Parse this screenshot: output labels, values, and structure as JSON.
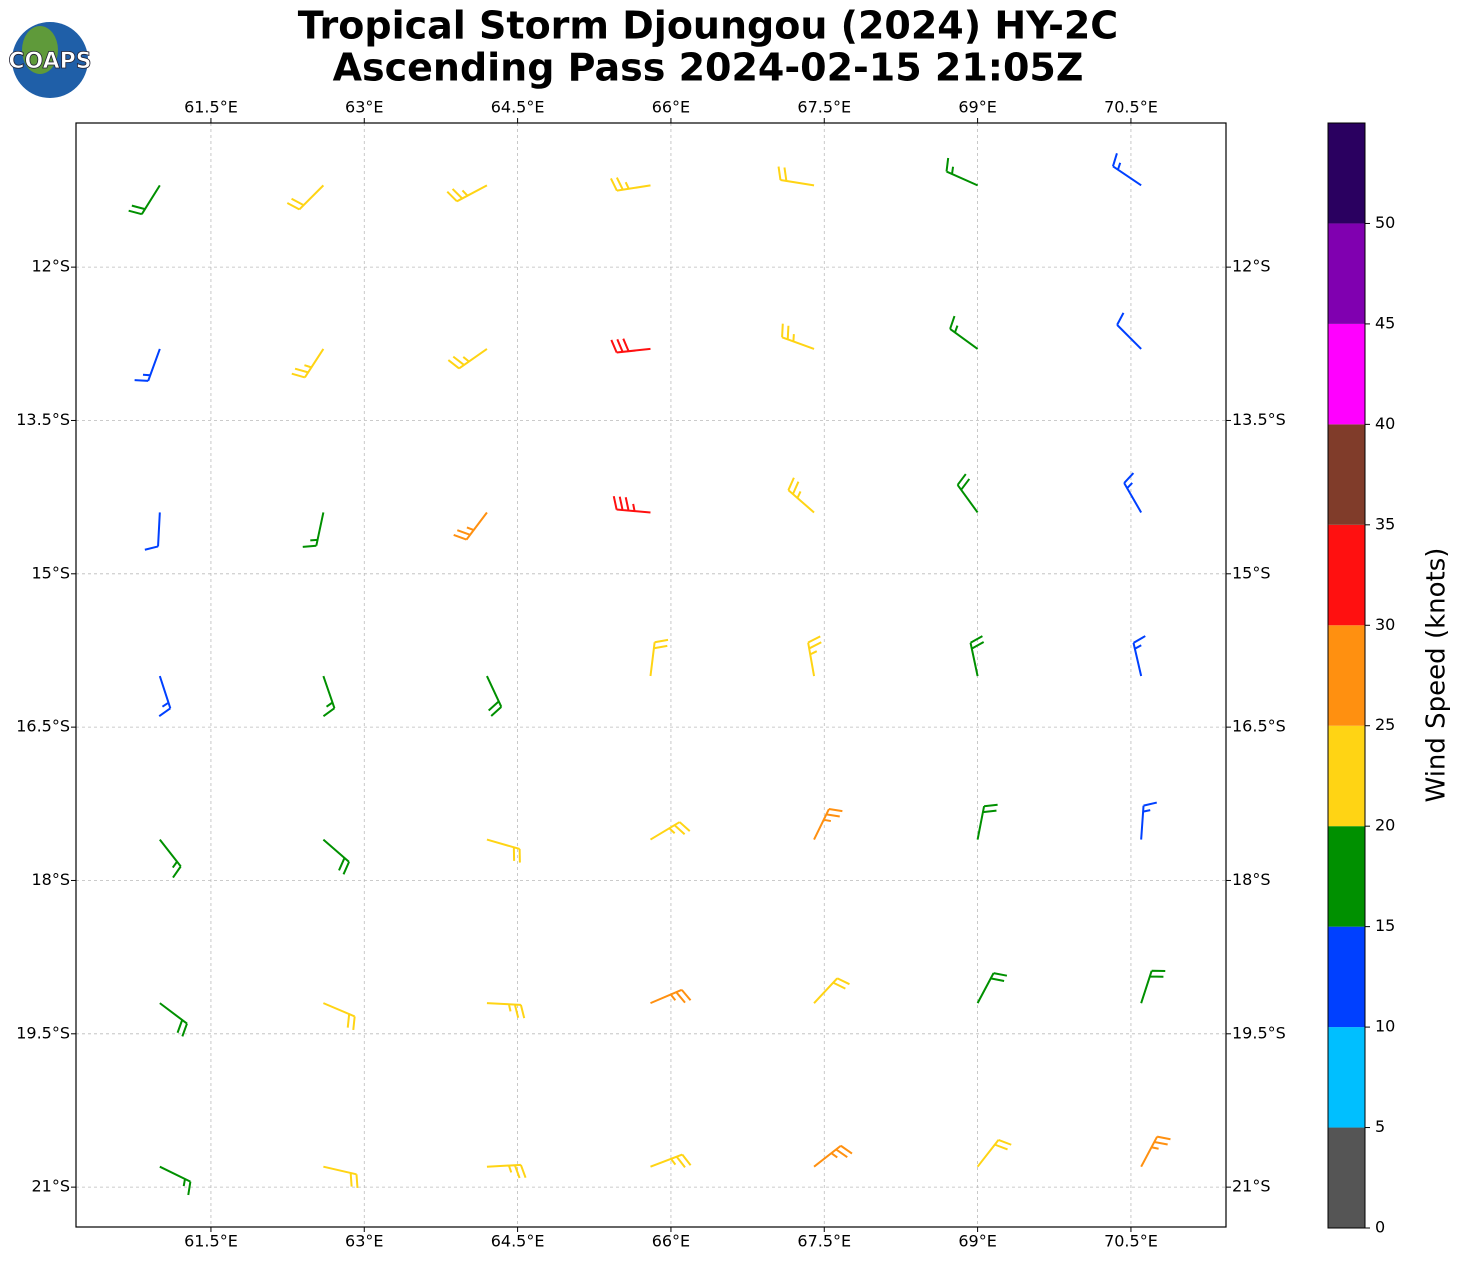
{
  "logo": "COAPS",
  "title": [
    "Tropical Storm Djoungou (2024) HY-2C",
    "Ascending Pass 2024-02-15 21:05Z"
  ],
  "map": {
    "xlim": [
      60.18,
      71.43
    ],
    "ylim": [
      -21.39,
      -10.59
    ],
    "xticks": [
      {
        "value": 61.5,
        "label": "61.5°E"
      },
      {
        "value": 63,
        "label": "63°E"
      },
      {
        "value": 64.5,
        "label": "64.5°E"
      },
      {
        "value": 66,
        "label": "66°E"
      },
      {
        "value": 67.5,
        "label": "67.5°E"
      },
      {
        "value": 69,
        "label": "69°E"
      },
      {
        "value": 70.5,
        "label": "70.5°E"
      }
    ],
    "yticks": [
      {
        "value": -12,
        "label": "12°S"
      },
      {
        "value": -13.5,
        "label": "13.5°S"
      },
      {
        "value": -15,
        "label": "15°S"
      },
      {
        "value": -16.5,
        "label": "16.5°S"
      },
      {
        "value": -18,
        "label": "18°S"
      },
      {
        "value": -19.5,
        "label": "19.5°S"
      },
      {
        "value": -21,
        "label": "21°S"
      }
    ],
    "grid": true,
    "barbs": {
      "lon": [
        61,
        62.6,
        64.2,
        65.8,
        67.4,
        69,
        70.6,
        61,
        62.6,
        64.2,
        65.8,
        67.4,
        69,
        70.6,
        61,
        62.6,
        64.2,
        65.8,
        67.4,
        69,
        70.6,
        61,
        62.6,
        64.2,
        65.8,
        67.4,
        69,
        70.6,
        61,
        62.6,
        64.2,
        65.8,
        67.4,
        69,
        70.6,
        61,
        62.6,
        64.2,
        65.8,
        67.4,
        69,
        70.6,
        61,
        62.6,
        64.2,
        65.8,
        67.4,
        69,
        70.6
      ],
      "lat": [
        -11.2,
        -11.2,
        -11.2,
        -11.2,
        -11.2,
        -11.2,
        -11.2,
        -12.8,
        -12.8,
        -12.8,
        -12.8,
        -12.8,
        -12.8,
        -12.8,
        -14.4,
        -14.4,
        -14.4,
        -14.4,
        -14.4,
        -14.4,
        -14.4,
        -16,
        -16,
        -16,
        -16,
        -16,
        -16,
        -16,
        -17.6,
        -17.6,
        -17.6,
        -17.6,
        -17.6,
        -17.6,
        -17.6,
        -19.2,
        -19.2,
        -19.2,
        -19.2,
        -19.2,
        -19.2,
        -19.2,
        -20.8,
        -20.8,
        -20.8,
        -20.8,
        -20.8,
        -20.8,
        -20.8
      ],
      "speed": [
        18,
        22,
        23,
        24,
        22,
        16,
        13,
        14,
        24,
        24,
        32,
        23,
        17,
        12,
        12,
        16,
        26,
        33,
        24,
        18,
        13,
        13,
        16,
        18,
        22,
        23,
        19,
        14,
        17,
        18,
        22,
        24,
        27,
        19,
        14,
        18,
        22,
        23,
        26,
        22,
        18,
        18,
        16,
        22,
        23,
        24,
        26,
        22,
        27
      ],
      "dir": [
        212,
        225,
        242,
        261,
        279,
        294,
        304,
        200,
        213,
        235,
        264,
        290,
        306,
        315,
        183,
        192,
        217,
        275,
        311,
        324,
        330,
        162,
        161,
        155,
        7,
        350,
        348,
        347,
        142,
        131,
        106,
        59,
        26,
        11,
        4,
        127,
        113,
        93,
        67,
        43,
        28,
        18,
        116,
        103,
        87,
        69,
        52,
        38,
        28
      ]
    }
  },
  "colorbar": {
    "label": "Wind Speed (knots)",
    "bins": [
      0,
      5,
      10,
      15,
      20,
      25,
      30,
      35,
      40,
      45,
      50,
      55
    ],
    "colors": [
      "#555555",
      "#00bfff",
      "#0040ff",
      "#009000",
      "#ffd414",
      "#ff9010",
      "#ff1010",
      "#803c2a",
      "#ff00ff",
      "#8000b0",
      "#2a0060"
    ],
    "ticks": [
      0,
      5,
      10,
      15,
      20,
      25,
      30,
      35,
      40,
      45,
      50
    ]
  }
}
